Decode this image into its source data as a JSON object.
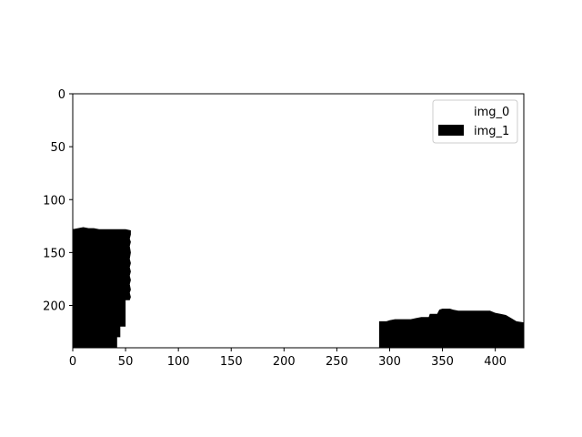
{
  "chart_data": {
    "type": "heatmap",
    "title": "",
    "xlabel": "",
    "ylabel": "",
    "xlim": [
      0,
      427
    ],
    "ylim": [
      240,
      0
    ],
    "y_axis_inverted": true,
    "grid": false,
    "legend_position": "upper right",
    "xticks": [
      0,
      50,
      100,
      150,
      200,
      250,
      300,
      350,
      400
    ],
    "yticks": [
      0,
      50,
      100,
      150,
      200
    ],
    "series": [
      {
        "name": "img_0",
        "color": "#ffffff",
        "fill": "background"
      },
      {
        "name": "img_1",
        "color": "#000000",
        "regions": [
          {
            "polygon": [
              [
                0,
                240
              ],
              [
                0,
                128
              ],
              [
                5,
                127
              ],
              [
                10,
                126
              ],
              [
                15,
                127
              ],
              [
                20,
                127
              ],
              [
                25,
                128
              ],
              [
                30,
                128
              ],
              [
                35,
                128
              ],
              [
                40,
                128
              ],
              [
                45,
                128
              ],
              [
                48,
                128
              ],
              [
                50,
                128
              ],
              [
                55,
                129
              ],
              [
                55,
                133
              ],
              [
                54,
                137
              ],
              [
                55,
                140
              ],
              [
                54,
                144
              ],
              [
                55,
                150
              ],
              [
                54,
                156
              ],
              [
                55,
                160
              ],
              [
                54,
                164
              ],
              [
                55,
                168
              ],
              [
                54,
                172
              ],
              [
                55,
                176
              ],
              [
                54,
                180
              ],
              [
                55,
                185
              ],
              [
                54,
                188
              ],
              [
                55,
                192
              ],
              [
                54,
                195
              ],
              [
                50,
                195
              ],
              [
                50,
                220
              ],
              [
                45,
                220
              ],
              [
                45,
                230
              ],
              [
                42,
                230
              ],
              [
                42,
                240
              ]
            ]
          },
          {
            "polygon": [
              [
                290,
                240
              ],
              [
                290,
                215
              ],
              [
                297,
                215
              ],
              [
                300,
                214
              ],
              [
                305,
                213
              ],
              [
                320,
                213
              ],
              [
                325,
                212
              ],
              [
                330,
                211
              ],
              [
                337,
                211
              ],
              [
                338,
                208
              ],
              [
                345,
                208
              ],
              [
                347,
                204
              ],
              [
                350,
                203
              ],
              [
                357,
                203
              ],
              [
                360,
                204
              ],
              [
                365,
                205
              ],
              [
                395,
                205
              ],
              [
                400,
                207
              ],
              [
                405,
                208
              ],
              [
                410,
                209
              ],
              [
                415,
                212
              ],
              [
                420,
                215
              ],
              [
                427,
                216
              ],
              [
                427,
                240
              ]
            ]
          }
        ]
      }
    ]
  }
}
